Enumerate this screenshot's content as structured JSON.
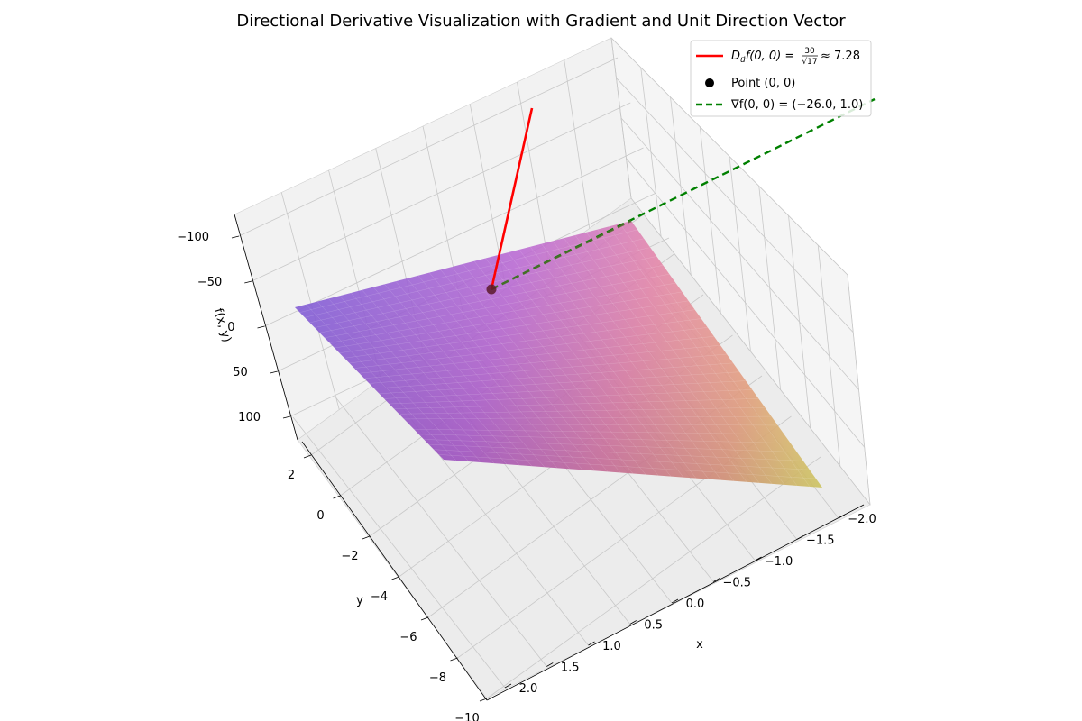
{
  "chart_data": {
    "type": "surface3d",
    "title": "Directional Derivative Visualization with Gradient and Unit Direction Vector",
    "xlabel": "x",
    "ylabel": "y",
    "zlabel": "f(x, y)",
    "xlim": [
      -2.1,
      2.1
    ],
    "ylim": [
      -10.4,
      2.6
    ],
    "zlim": [
      -112,
      112
    ],
    "x_ticks": [
      "−2.0",
      "−1.5",
      "−1.0",
      "−0.5",
      "0.0",
      "0.5",
      "1.0",
      "1.5",
      "2.0"
    ],
    "x_tick_values": [
      -2.0,
      -1.5,
      -1.0,
      -0.5,
      0.0,
      0.5,
      1.0,
      1.5,
      2.0
    ],
    "y_ticks": [
      "−10",
      "−8",
      "−6",
      "−4",
      "−2",
      "0",
      "2"
    ],
    "y_tick_values": [
      -10,
      -8,
      -6,
      -4,
      -2,
      0,
      2
    ],
    "z_ticks": [
      "−100",
      "−50",
      "0",
      "50",
      "100"
    ],
    "z_tick_values": [
      -100,
      -50,
      0,
      50,
      100
    ],
    "surface": {
      "colormap": "plasma",
      "alpha": 0.65
    },
    "point": {
      "x": 0,
      "y": 0,
      "z": 0,
      "label": "Point (0, 0)",
      "color": "#000000"
    },
    "gradient": {
      "x": -26.0,
      "y": 1.0,
      "label": "∇f(0, 0) = (−26.0, 1.0)",
      "color": "#008000"
    },
    "directional_derivative": {
      "numerator": "30",
      "denominator": "17",
      "value": "≈ 7.28",
      "color": "#ff0000"
    },
    "legend": {
      "position": "top-right",
      "entries": [
        {
          "id": "dd",
          "label_main": "D",
          "label_sub": "u⃗",
          "label_rest": "f(0, 0) =",
          "frac_num": "30",
          "frac_den": "√17",
          "label_tail": "≈ 7.28",
          "color": "#ff0000",
          "style": "solid"
        },
        {
          "id": "pt",
          "label": "Point (0, 0)",
          "color": "#000000",
          "style": "marker"
        },
        {
          "id": "gr",
          "label": "∇f(0, 0) = (−26.0, 1.0)",
          "color": "#008000",
          "style": "dashed"
        }
      ]
    }
  }
}
